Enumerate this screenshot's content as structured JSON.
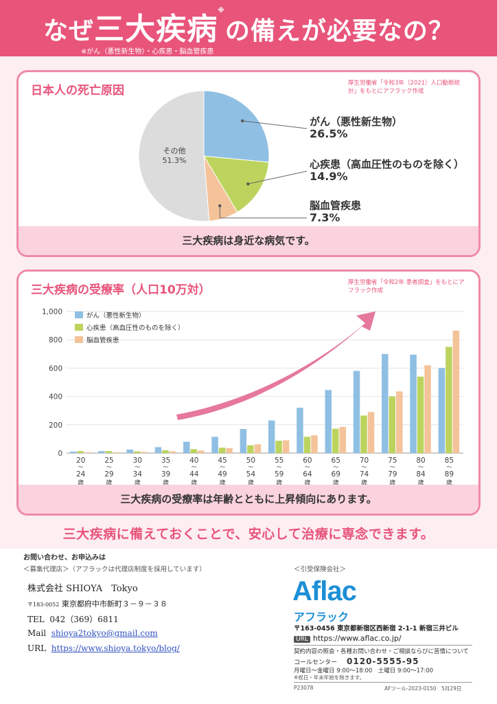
{
  "header": {
    "title_pre": "なぜ",
    "title_main": "三大疾病",
    "title_star": "※",
    "title_post": "の備えが必要なの？",
    "subtitle": "※がん（悪性新生物）・心疾患・脳血管疾患"
  },
  "death_causes": {
    "title": "日本人の死亡原因",
    "source": "厚生労働省「令和3年（2021）人口動態統計」をもとにアフラック作成",
    "footer": "三大疾病は身近な病気です。",
    "other_name": "その他",
    "other_value": "51.3%",
    "cancer_name": "がん（悪性新生物）",
    "cancer_value": "26.5%",
    "heart_name": "心疾患（高血圧性のものを除く）",
    "heart_value": "14.9%",
    "stroke_name": "脳血管疾患",
    "stroke_value": "7.3%"
  },
  "treatment_rate": {
    "title": "三大疾病の受療率（人口10万対）",
    "source": "厚生労働省「令和2年 患者調査」をもとにアフラック作成",
    "footer": "三大疾病の受療率は年齢とともに上昇傾向にあります。"
  },
  "colors": {
    "brand_pink": "#e8547a",
    "cancer": "#8fbfe3",
    "heart": "#bcd45e",
    "stroke": "#f4c39a",
    "other": "#dcdcdc",
    "aflac_blue": "#1c8fd6"
  },
  "chart_data": [
    {
      "type": "pie",
      "labels": [
        "がん（悪性新生物）",
        "心疾患（高血圧性のものを除く）",
        "脳血管疾患",
        "その他"
      ],
      "values": [
        26.5,
        14.9,
        7.3,
        51.3
      ],
      "colors": [
        "#8fbfe3",
        "#bcd45e",
        "#f4c39a",
        "#dcdcdc"
      ]
    },
    {
      "type": "bar",
      "categories": [
        "20〜24歳",
        "25〜29歳",
        "30〜34歳",
        "35〜39歳",
        "40〜44歳",
        "45〜49歳",
        "50〜54歳",
        "55〜59歳",
        "60〜64歳",
        "65〜69歳",
        "70〜74歳",
        "75〜79歳",
        "80〜84歳",
        "85〜89歳"
      ],
      "tick_start": [
        "20",
        "25",
        "30",
        "35",
        "40",
        "45",
        "50",
        "55",
        "60",
        "65",
        "70",
        "75",
        "80",
        "85"
      ],
      "tick_end": [
        "24",
        "29",
        "34",
        "39",
        "44",
        "49",
        "54",
        "59",
        "64",
        "69",
        "74",
        "79",
        "84",
        "89"
      ],
      "tick_unit": "歳",
      "tick_sep": "〜",
      "series": [
        {
          "name": "がん（悪性新生物）",
          "color": "#8fbfe3",
          "values": [
            10,
            14,
            25,
            42,
            80,
            115,
            170,
            230,
            320,
            445,
            580,
            700,
            695,
            600
          ]
        },
        {
          "name": "心疾患（高血圧性のものを除く）",
          "color": "#bcd45e",
          "values": [
            14,
            14,
            12,
            20,
            28,
            38,
            55,
            87,
            115,
            172,
            265,
            400,
            540,
            750
          ]
        },
        {
          "name": "脳血管疾患",
          "color": "#f4c39a",
          "values": [
            5,
            6,
            8,
            12,
            18,
            35,
            62,
            90,
            125,
            185,
            290,
            435,
            620,
            865
          ]
        }
      ],
      "ylim": [
        0,
        1000
      ],
      "yticks": [
        "0",
        "200",
        "400",
        "600",
        "800",
        "1,000"
      ],
      "legend": "top-left",
      "grid": true
    }
  ],
  "tagline": "三大疾病に備えておくことで、安心して治療に専念できます。",
  "contact": {
    "heading": "お問い合わせ、お申込みは",
    "agency_heading": "＜募集代理店＞（アフラックは代理店制度を採用しています）",
    "company": "株式会社 SHIOYA　Tokyo",
    "zip": "〒183-0052",
    "address": "東京都府中市新町３－９－３８",
    "tel_label": "TEL",
    "tel": "042（369）6811",
    "mail_label": "Mail",
    "mail": "shioya2tokyo@gmail.com",
    "url_label": "URL",
    "url": "https://www.shioya.tokyo/blog/"
  },
  "insurer": {
    "heading": "＜引受保険会社＞",
    "logo": "Aflac",
    "kana": "アフラック",
    "address": "〒163-0456 東京都新宿区西新宿 2-1-1 新宿三井ビル",
    "url_badge": "URL",
    "url": "https://www.aflac.co.jp/",
    "inquiry": "契約内容の照会・各種お問い合わせ・ご相談ならびに苦情について",
    "call_label": "コールセンター",
    "call_number": "0120-5555-95",
    "hours": "月曜日～金曜日 9:00～18:00　土曜日 9:00～17:00",
    "holiday": "※祝日・年末年始を除きます。",
    "code_left": "P23078",
    "code_right": "AFツール-2023-0150　5月29日"
  }
}
